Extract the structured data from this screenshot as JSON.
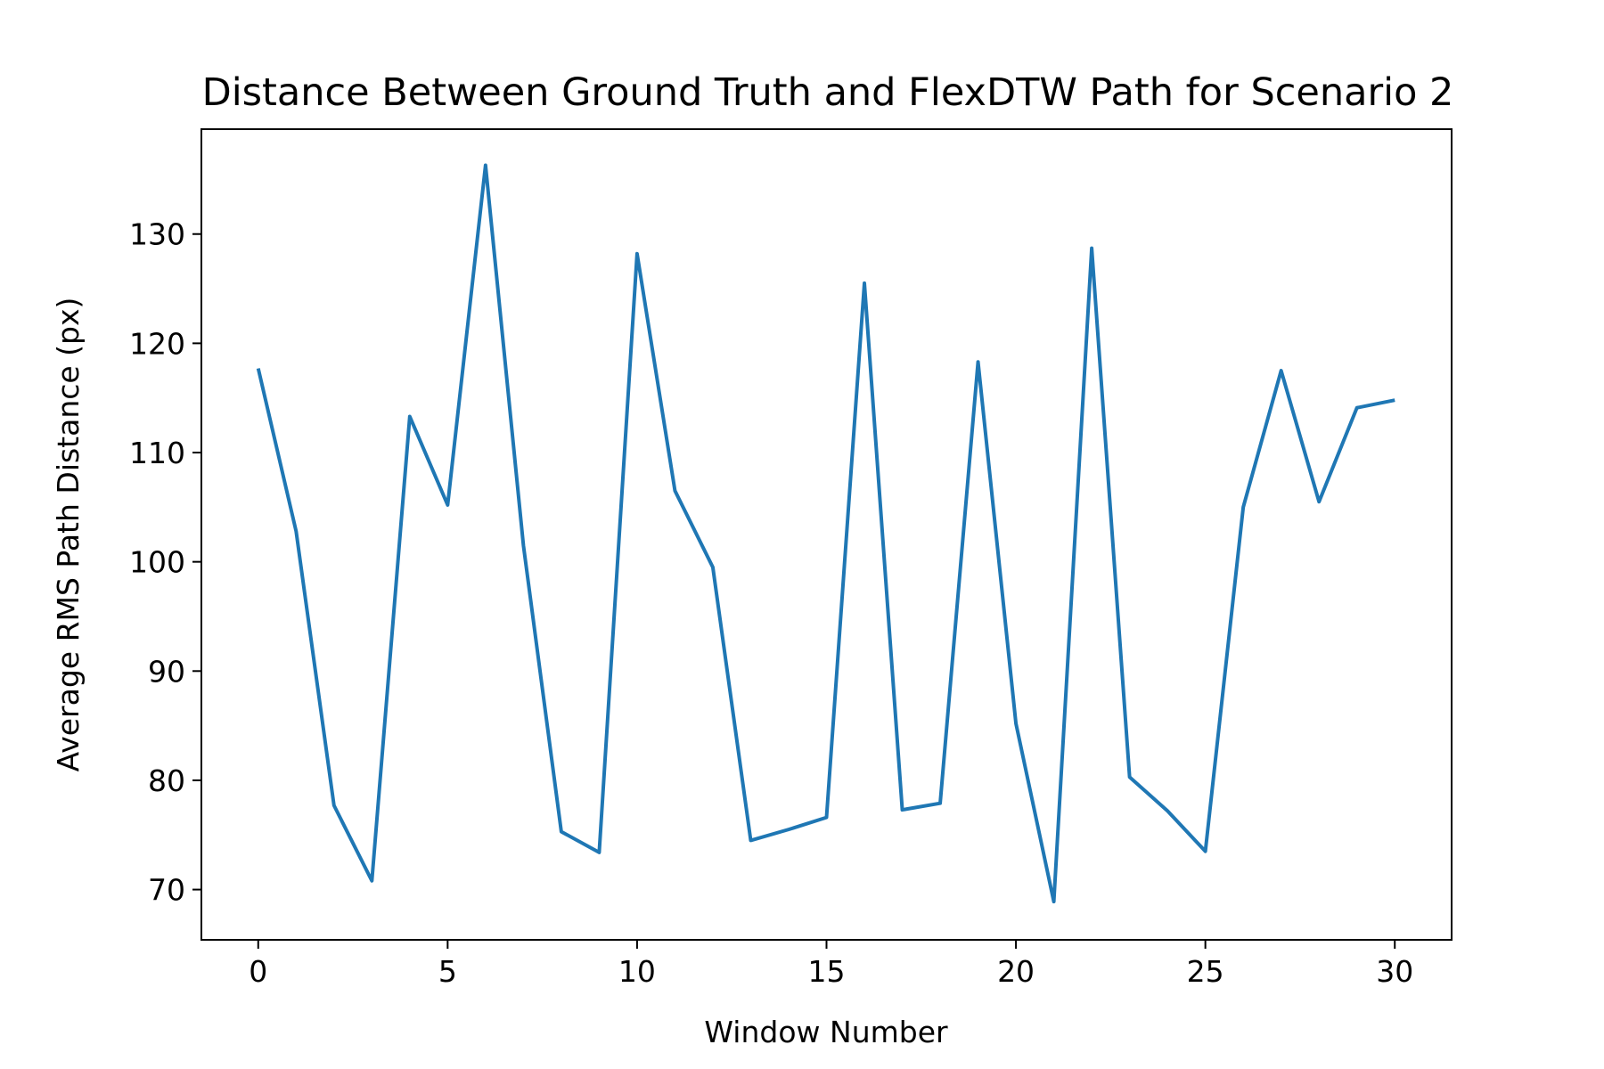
{
  "chart_data": {
    "type": "line",
    "title": "Distance Between Ground Truth and FlexDTW Path for Scenario 2",
    "xlabel": "Window Number",
    "ylabel": "Average RMS Path Distance (px)",
    "xlim": [
      -1.5,
      31.5
    ],
    "ylim": [
      65.4,
      139.6
    ],
    "xticks": [
      0,
      5,
      10,
      15,
      20,
      25,
      30
    ],
    "yticks": [
      70,
      80,
      90,
      100,
      110,
      120,
      130
    ],
    "grid": false,
    "x": [
      0,
      1,
      2,
      3,
      4,
      5,
      6,
      7,
      8,
      9,
      10,
      11,
      12,
      13,
      14,
      15,
      16,
      17,
      18,
      19,
      20,
      21,
      22,
      23,
      24,
      25,
      26,
      27,
      28,
      29,
      30
    ],
    "series": [
      {
        "color": "#1f77b4",
        "values": [
          117.7,
          102.8,
          77.7,
          70.8,
          113.3,
          105.2,
          136.3,
          101.5,
          75.3,
          73.4,
          128.2,
          106.5,
          99.5,
          74.5,
          75.5,
          76.6,
          125.5,
          77.3,
          77.9,
          118.3,
          85.2,
          68.9,
          128.7,
          80.3,
          77.2,
          73.5,
          105.0,
          117.5,
          105.5,
          114.1,
          114.8
        ]
      }
    ]
  }
}
